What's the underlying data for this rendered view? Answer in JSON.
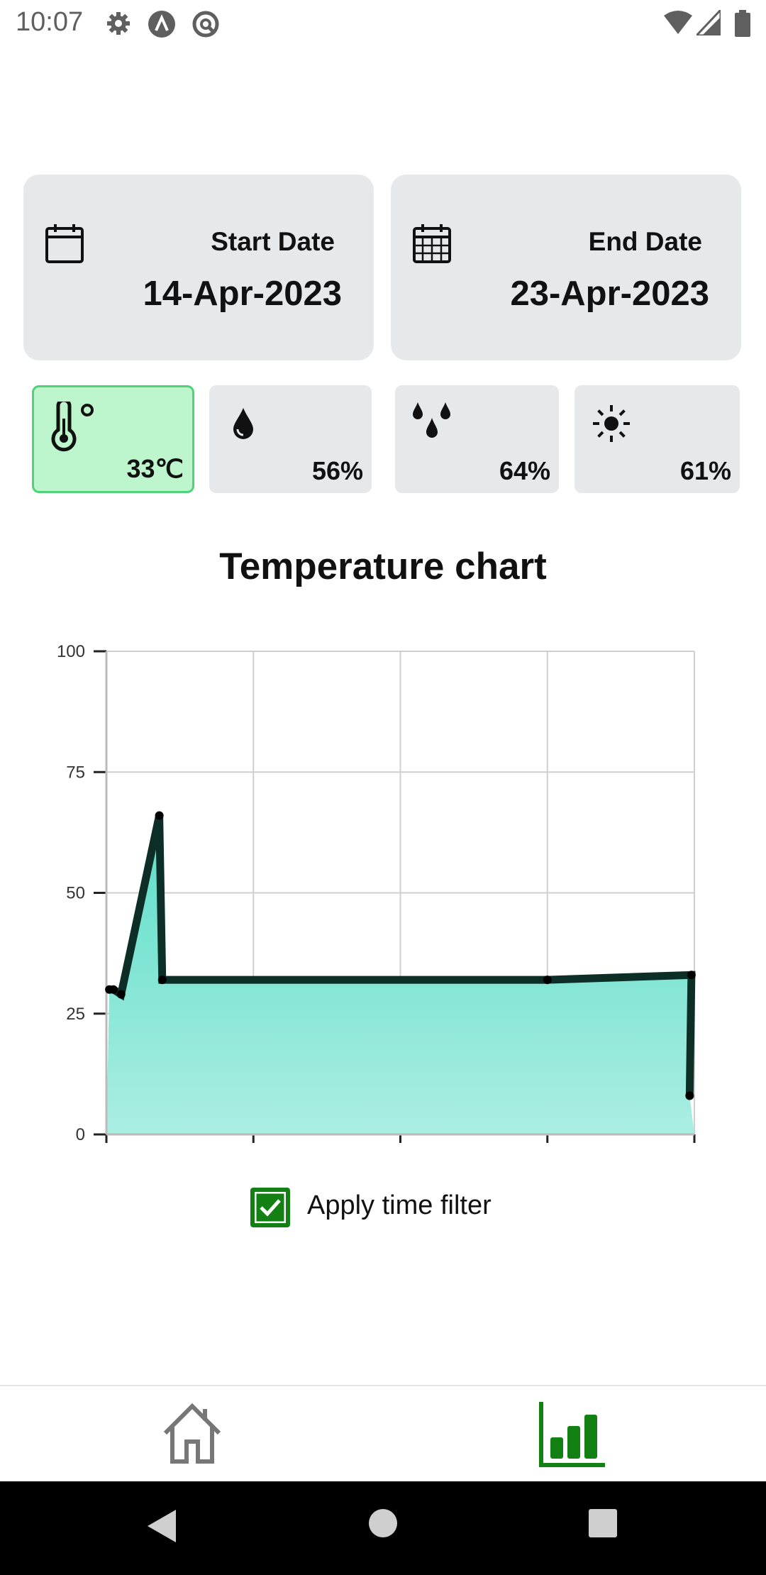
{
  "status_bar": {
    "time": "10:07",
    "left_icons": [
      "settings-icon",
      "a-circle-icon",
      "no-sync-icon"
    ],
    "right_icons": [
      "wifi-icon",
      "signal-icon",
      "battery-icon"
    ]
  },
  "dates": {
    "start": {
      "label": "Start Date",
      "value": "14-Apr-2023",
      "icon": "calendar-icon"
    },
    "end": {
      "label": "End Date",
      "value": "23-Apr-2023",
      "icon": "calendar-grid-icon"
    }
  },
  "metrics": [
    {
      "id": "temperature",
      "value": "33℃",
      "icon": "thermometer-icon",
      "selected": true
    },
    {
      "id": "humidity",
      "value": "56%",
      "icon": "water-drop-icon",
      "selected": false
    },
    {
      "id": "rain",
      "value": "64%",
      "icon": "water-drops-icon",
      "selected": false
    },
    {
      "id": "light",
      "value": "61%",
      "icon": "sun-icon",
      "selected": false
    }
  ],
  "chart": {
    "title": "Temperature chart"
  },
  "chart_data": {
    "type": "area",
    "title": "Temperature chart",
    "xlabel": "",
    "ylabel": "",
    "ylim": [
      0,
      100
    ],
    "yticks": [
      0,
      25,
      50,
      75,
      100
    ],
    "xlim": [
      0,
      100
    ],
    "grid": true,
    "series": [
      {
        "x": [
          0.5,
          1.2,
          2.5,
          9.0,
          9.5,
          75.0,
          99.5,
          99.2
        ],
        "values": [
          30,
          30,
          29,
          66,
          32,
          32,
          33,
          8
        ]
      }
    ],
    "colors": {
      "line": "#0c2e26",
      "fill_top": "#5cddc8",
      "fill_bottom": "#abeee2"
    }
  },
  "filter": {
    "label": "Apply time filter",
    "checked": true
  },
  "bottom_nav": {
    "items": [
      "home-icon",
      "bar-chart-icon"
    ],
    "active": "bar-chart-icon",
    "active_color": "#138013"
  },
  "system_nav": [
    "back-icon",
    "home-circle-icon",
    "recents-icon"
  ]
}
